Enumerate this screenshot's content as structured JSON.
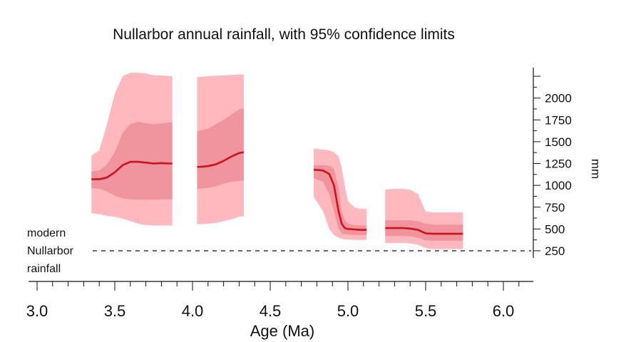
{
  "chart_data": {
    "type": "area",
    "title": "Nullarbor annual rainfall, with 95% confidence limits",
    "xlabel": "Age (Ma)",
    "ylabel": "mm",
    "xlim": [
      3.0,
      6.2
    ],
    "ylim": [
      180,
      2350
    ],
    "x_ticks": [
      "3.0",
      "3.5",
      "4.0",
      "4.5",
      "5.0",
      "5.5",
      "6.0"
    ],
    "y_ticks": [
      "250",
      "500",
      "750",
      "1000",
      "1250",
      "1500",
      "1750",
      "2000"
    ],
    "colors": {
      "outer": "#ffb8bd",
      "inner": "#f0949d",
      "median": "#d0101d",
      "axis": "#111111"
    },
    "reference": {
      "value": 250,
      "label_lines": [
        "modern",
        "Nullarbor",
        "rainfall"
      ]
    },
    "segments": [
      {
        "x": [
          3.35,
          3.4,
          3.45,
          3.5,
          3.55,
          3.6,
          3.65,
          3.7,
          3.75,
          3.8,
          3.85,
          3.87
        ],
        "median": [
          1070,
          1070,
          1090,
          1150,
          1230,
          1270,
          1270,
          1260,
          1250,
          1255,
          1250,
          1250
        ],
        "inner_hi": [
          1160,
          1170,
          1240,
          1380,
          1600,
          1700,
          1730,
          1710,
          1700,
          1710,
          1720,
          1720
        ],
        "inner_lo": [
          970,
          960,
          930,
          880,
          850,
          840,
          835,
          835,
          835,
          840,
          840,
          840
        ],
        "outer_hi": [
          1340,
          1400,
          1700,
          2050,
          2250,
          2290,
          2290,
          2280,
          2260,
          2260,
          2250,
          2250
        ],
        "outer_lo": [
          680,
          670,
          650,
          640,
          620,
          590,
          560,
          545,
          540,
          540,
          540,
          540
        ]
      },
      {
        "x": [
          4.03,
          4.1,
          4.15,
          4.2,
          4.25,
          4.3,
          4.33
        ],
        "median": [
          1210,
          1220,
          1240,
          1280,
          1330,
          1370,
          1380
        ],
        "inner_hi": [
          1620,
          1650,
          1700,
          1750,
          1810,
          1870,
          1880
        ],
        "inner_lo": [
          960,
          970,
          990,
          1020,
          1040,
          1050,
          1060
        ],
        "outer_hi": [
          2240,
          2250,
          2255,
          2260,
          2265,
          2270,
          2270
        ],
        "outer_lo": [
          555,
          560,
          570,
          590,
          610,
          640,
          650
        ]
      },
      {
        "x": [
          4.78,
          4.84,
          4.88,
          4.91,
          4.94,
          4.96,
          4.98,
          5.0,
          5.04,
          5.08,
          5.12
        ],
        "median": [
          1180,
          1170,
          1130,
          1000,
          700,
          560,
          510,
          500,
          495,
          490,
          490
        ],
        "inner_hi": [
          1230,
          1230,
          1225,
          1190,
          980,
          700,
          600,
          560,
          545,
          540,
          540
        ],
        "inner_lo": [
          1080,
          1040,
          900,
          700,
          500,
          450,
          440,
          435,
          430,
          430,
          430
        ],
        "outer_hi": [
          1420,
          1410,
          1400,
          1380,
          1330,
          1200,
          990,
          820,
          750,
          730,
          730
        ],
        "outer_lo": [
          870,
          700,
          500,
          430,
          400,
          390,
          380,
          380,
          375,
          375,
          375
        ]
      },
      {
        "x": [
          5.24,
          5.3,
          5.35,
          5.4,
          5.45,
          5.5,
          5.55,
          5.6,
          5.65,
          5.7,
          5.74
        ],
        "median": [
          510,
          510,
          510,
          505,
          490,
          450,
          445,
          445,
          445,
          445,
          445
        ],
        "inner_hi": [
          600,
          600,
          600,
          600,
          590,
          560,
          550,
          550,
          550,
          550,
          550
        ],
        "inner_lo": [
          420,
          420,
          420,
          415,
          400,
          370,
          365,
          365,
          365,
          365,
          365
        ],
        "outer_hi": [
          950,
          960,
          960,
          950,
          900,
          700,
          690,
          690,
          690,
          690,
          690
        ],
        "outer_lo": [
          340,
          340,
          340,
          335,
          320,
          280,
          270,
          270,
          270,
          270,
          270
        ]
      }
    ]
  }
}
